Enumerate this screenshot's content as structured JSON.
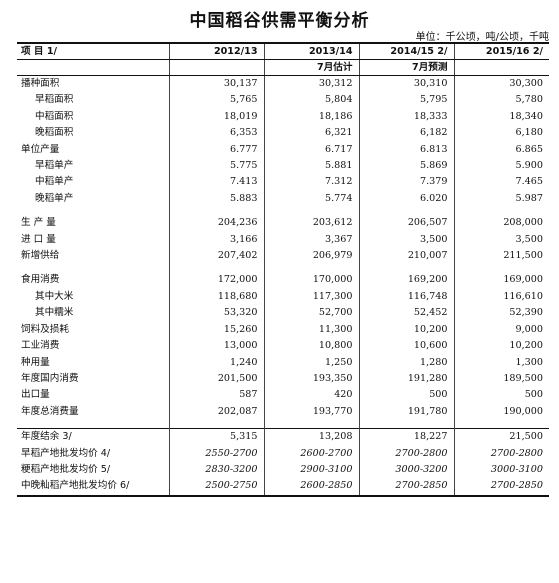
{
  "title": "中国稻谷供需平衡分析",
  "unit_note": "单位：千公顷，吨/公顷，千吨",
  "header": {
    "item": "项 目 1/",
    "cols": [
      "2012/13",
      "2013/14",
      "2014/15 2/",
      "2015/16 2/"
    ],
    "sub": [
      "",
      "",
      "7月估计",
      "7月预测"
    ]
  },
  "section1": [
    {
      "label": "播种面积",
      "v": [
        "30,137",
        "30,312",
        "30,310",
        "30,300"
      ]
    },
    {
      "label": "早稻面积",
      "v": [
        "5,765",
        "5,804",
        "5,795",
        "5,780"
      ]
    },
    {
      "label": "中稻面积",
      "v": [
        "18,019",
        "18,186",
        "18,333",
        "18,340"
      ]
    },
    {
      "label": "晚稻面积",
      "v": [
        "6,353",
        "6,321",
        "6,182",
        "6,180"
      ]
    },
    {
      "label": "单位产量",
      "v": [
        "6.777",
        "6.717",
        "6.813",
        "6.865"
      ]
    },
    {
      "label": "早稻单产",
      "v": [
        "5.775",
        "5.881",
        "5.869",
        "5.900"
      ]
    },
    {
      "label": "中稻单产",
      "v": [
        "7.413",
        "7.312",
        "7.379",
        "7.465"
      ]
    },
    {
      "label": "晚稻单产",
      "v": [
        "5.883",
        "5.774",
        "6.020",
        "5.987"
      ]
    }
  ],
  "section2": [
    {
      "label": "生 产 量",
      "v": [
        "204,236",
        "203,612",
        "206,507",
        "208,000"
      ]
    },
    {
      "label": "进 口 量",
      "v": [
        "3,166",
        "3,367",
        "3,500",
        "3,500"
      ]
    },
    {
      "label": "新增供给",
      "v": [
        "207,402",
        "206,979",
        "210,007",
        "211,500"
      ]
    }
  ],
  "section3": [
    {
      "label": "食用消费",
      "v": [
        "172,000",
        "170,000",
        "169,200",
        "169,000"
      ]
    },
    {
      "label": "其中大米",
      "v": [
        "118,680",
        "117,300",
        "116,748",
        "116,610"
      ]
    },
    {
      "label": "其中糯米",
      "v": [
        "53,320",
        "52,700",
        "52,452",
        "52,390"
      ]
    },
    {
      "label": "饲料及损耗",
      "v": [
        "15,260",
        "11,300",
        "10,200",
        "9,000"
      ]
    },
    {
      "label": "工业消费",
      "v": [
        "13,000",
        "10,800",
        "10,600",
        "10,200"
      ]
    },
    {
      "label": "种用量",
      "v": [
        "1,240",
        "1,250",
        "1,280",
        "1,300"
      ]
    },
    {
      "label": "年度国内消费",
      "v": [
        "201,500",
        "193,350",
        "191,280",
        "189,500"
      ]
    },
    {
      "label": "出口量",
      "v": [
        "587",
        "420",
        "500",
        "500"
      ]
    },
    {
      "label": "年度总消费量",
      "v": [
        "202,087",
        "193,770",
        "191,780",
        "190,000"
      ]
    }
  ],
  "section4": [
    {
      "label": "年度结余 3/",
      "v": [
        "5,315",
        "13,208",
        "18,227",
        "21,500"
      ]
    },
    {
      "label": "早稻产地批发均价 4/",
      "v": [
        "2550-2700",
        "2600-2700",
        "2700-2800",
        "2700-2800"
      ]
    },
    {
      "label": "粳稻产地批发均价 5/",
      "v": [
        "2830-3200",
        "2900-3100",
        "3000-3200",
        "3000-3100"
      ]
    },
    {
      "label": "中晚籼稻产地批发均价 6/",
      "v": [
        "2500-2750",
        "2600-2850",
        "2700-2850",
        "2700-2850"
      ]
    }
  ]
}
